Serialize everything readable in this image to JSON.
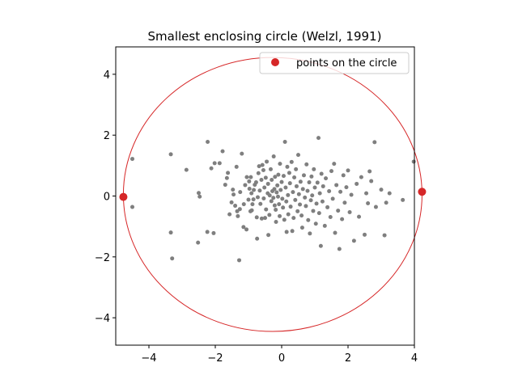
{
  "chart_data": {
    "type": "scatter",
    "title": "Smallest enclosing circle (Welzl, 1991)",
    "xlabel": "",
    "ylabel": "",
    "xlim": [
      -5.0,
      4.0
    ],
    "ylim": [
      -4.9,
      4.9
    ],
    "aspect": "equal",
    "grid": false,
    "legend": {
      "placement": "top-right",
      "entries": [
        "points on the circle"
      ]
    },
    "x_ticks": [
      -4,
      -2,
      0,
      2,
      4
    ],
    "y_ticks": [
      -4,
      -2,
      0,
      2,
      4
    ],
    "circle": {
      "center": [
        -0.27,
        0.05
      ],
      "radius": 4.5,
      "color": "#d62728"
    },
    "series": [
      {
        "name": "",
        "color": "#7f7f7f",
        "points": [
          [
            -4.5,
            1.22
          ],
          [
            -4.5,
            -0.36
          ],
          [
            -3.34,
            1.37
          ],
          [
            -3.34,
            -1.2
          ],
          [
            -3.3,
            -2.05
          ],
          [
            -2.87,
            0.86
          ],
          [
            -2.52,
            -1.53
          ],
          [
            -2.5,
            0.1
          ],
          [
            -2.47,
            -0.02
          ],
          [
            -2.24,
            -1.18
          ],
          [
            -2.23,
            1.78
          ],
          [
            -2.12,
            0.91
          ],
          [
            -2.05,
            -1.22
          ],
          [
            -2.02,
            1.08
          ],
          [
            -1.87,
            1.08
          ],
          [
            -1.78,
            1.47
          ],
          [
            -1.7,
            0.37
          ],
          [
            -1.65,
            0.59
          ],
          [
            -1.62,
            0.76
          ],
          [
            -1.57,
            -0.6
          ],
          [
            -1.51,
            -0.21
          ],
          [
            -1.47,
            0.21
          ],
          [
            -1.45,
            0.05
          ],
          [
            -1.4,
            -0.32
          ],
          [
            -1.36,
            0.96
          ],
          [
            -1.34,
            -0.5
          ],
          [
            -1.32,
            -0.66
          ],
          [
            -1.28,
            -2.11
          ],
          [
            -1.26,
            -0.43
          ],
          [
            -1.25,
            0.13
          ],
          [
            -1.2,
            1.39
          ],
          [
            -1.15,
            -1.02
          ],
          [
            -1.14,
            -0.27
          ],
          [
            -1.1,
            0.36
          ],
          [
            -1.06,
            -1.1
          ],
          [
            -1.05,
            0.62
          ],
          [
            -1.0,
            -0.12
          ],
          [
            -0.98,
            0.48
          ],
          [
            -0.97,
            0.24
          ],
          [
            -0.94,
            -0.5
          ],
          [
            -0.93,
            0.62
          ],
          [
            -0.91,
            0.09
          ],
          [
            -0.9,
            -0.47
          ],
          [
            -0.88,
            -0.27
          ],
          [
            -0.85,
            -0.11
          ],
          [
            -0.84,
            0.2
          ],
          [
            -0.81,
            0.37
          ],
          [
            -0.77,
            0.45
          ],
          [
            -0.75,
            -0.7
          ],
          [
            -0.74,
            -1.4
          ],
          [
            -0.72,
            -0.04
          ],
          [
            -0.7,
            0.75
          ],
          [
            -0.68,
            0.98
          ],
          [
            -0.66,
            0.18
          ],
          [
            -0.64,
            -0.26
          ],
          [
            -0.61,
            0.53
          ],
          [
            -0.6,
            -0.74
          ],
          [
            -0.58,
            1.02
          ],
          [
            -0.55,
            0.85
          ],
          [
            -0.54,
            -0.08
          ],
          [
            -0.52,
            0.28
          ],
          [
            -0.5,
            -0.72
          ],
          [
            -0.48,
            0.6
          ],
          [
            -0.47,
            -0.44
          ],
          [
            -0.45,
            1.13
          ],
          [
            -0.42,
            0.09
          ],
          [
            -0.41,
            0.4
          ],
          [
            -0.4,
            -1.28
          ],
          [
            -0.37,
            -0.62
          ],
          [
            -0.36,
            0.02
          ],
          [
            -0.33,
            0.88
          ],
          [
            -0.31,
            -0.17
          ],
          [
            -0.3,
            0.53
          ],
          [
            -0.28,
            0.16
          ],
          [
            -0.25,
            -0.06
          ],
          [
            -0.24,
            1.3
          ],
          [
            -0.22,
            0.23
          ],
          [
            -0.21,
            -0.31
          ],
          [
            -0.2,
            0.63
          ],
          [
            -0.18,
            -0.45
          ],
          [
            -0.17,
            -0.85
          ],
          [
            -0.15,
            0.12
          ],
          [
            -0.13,
            0.35
          ],
          [
            -0.11,
            -0.02
          ],
          [
            -0.1,
            0.7
          ],
          [
            -0.08,
            -0.27
          ],
          [
            -0.06,
            -0.66
          ],
          [
            -0.05,
            1.06
          ],
          [
            -0.03,
            0.2
          ],
          [
            0.0,
            0.46
          ],
          [
            0.02,
            -0.09
          ],
          [
            0.04,
            -0.38
          ],
          [
            0.06,
            0.66
          ],
          [
            0.08,
            -0.78
          ],
          [
            0.1,
            1.78
          ],
          [
            0.12,
            0.28
          ],
          [
            0.14,
            -0.18
          ],
          [
            0.15,
            -1.18
          ],
          [
            0.17,
            0.96
          ],
          [
            0.19,
            0.03
          ],
          [
            0.2,
            -0.6
          ],
          [
            0.23,
            0.76
          ],
          [
            0.25,
            0.42
          ],
          [
            0.27,
            -0.35
          ],
          [
            0.3,
            1.12
          ],
          [
            0.32,
            -1.15
          ],
          [
            0.34,
            0.13
          ],
          [
            0.36,
            -0.72
          ],
          [
            0.38,
            0.61
          ],
          [
            0.41,
            -0.13
          ],
          [
            0.43,
            0.88
          ],
          [
            0.45,
            0.32
          ],
          [
            0.48,
            -0.5
          ],
          [
            0.5,
            1.35
          ],
          [
            0.52,
            0.06
          ],
          [
            0.55,
            -0.28
          ],
          [
            0.57,
            0.47
          ],
          [
            0.6,
            -0.64
          ],
          [
            0.62,
            -1.04
          ],
          [
            0.64,
            0.23
          ],
          [
            0.67,
            0.68
          ],
          [
            0.7,
            -0.05
          ],
          [
            0.73,
            -0.33
          ],
          [
            0.75,
            1.04
          ],
          [
            0.78,
            0.17
          ],
          [
            0.8,
            -0.79
          ],
          [
            0.83,
            0.45
          ],
          [
            0.85,
            -1.23
          ],
          [
            0.88,
            -0.14
          ],
          [
            0.9,
            0.64
          ],
          [
            0.92,
            0.02
          ],
          [
            0.95,
            -0.49
          ],
          [
            0.97,
            0.88
          ],
          [
            1.0,
            0.28
          ],
          [
            1.03,
            -0.91
          ],
          [
            1.05,
            -0.25
          ],
          [
            1.08,
            0.44
          ],
          [
            1.11,
            1.91
          ],
          [
            1.13,
            -0.56
          ],
          [
            1.15,
            0.09
          ],
          [
            1.18,
            -1.64
          ],
          [
            1.2,
            0.73
          ],
          [
            1.23,
            -0.18
          ],
          [
            1.25,
            0.32
          ],
          [
            1.3,
            -0.98
          ],
          [
            1.33,
            0.58
          ],
          [
            1.38,
            -0.37
          ],
          [
            1.43,
            0.16
          ],
          [
            1.47,
            -0.69
          ],
          [
            1.5,
            0.82
          ],
          [
            1.54,
            -0.09
          ],
          [
            1.58,
            1.06
          ],
          [
            1.61,
            -1.21
          ],
          [
            1.65,
            0.36
          ],
          [
            1.7,
            -0.48
          ],
          [
            1.74,
            -1.74
          ],
          [
            1.77,
            0.14
          ],
          [
            1.82,
            -0.76
          ],
          [
            1.86,
            0.68
          ],
          [
            1.9,
            -0.22
          ],
          [
            1.95,
            0.29
          ],
          [
            2.0,
            0.84
          ],
          [
            2.05,
            -0.53
          ],
          [
            2.1,
            0.04
          ],
          [
            2.18,
            -1.47
          ],
          [
            2.26,
            0.4
          ],
          [
            2.33,
            -0.68
          ],
          [
            2.4,
            0.62
          ],
          [
            2.5,
            -1.27
          ],
          [
            2.55,
            0.09
          ],
          [
            2.6,
            -0.24
          ],
          [
            2.65,
            0.81
          ],
          [
            2.7,
            0.49
          ],
          [
            2.8,
            1.77
          ],
          [
            2.84,
            -0.36
          ],
          [
            3.0,
            0.21
          ],
          [
            3.1,
            -1.29
          ],
          [
            3.15,
            -0.22
          ],
          [
            3.25,
            0.09
          ],
          [
            3.65,
            -0.13
          ],
          [
            3.98,
            1.13
          ]
        ]
      },
      {
        "name": "points on the circle",
        "color": "#d62728",
        "points": [
          [
            -4.77,
            -0.03
          ],
          [
            4.23,
            0.14
          ]
        ]
      }
    ]
  }
}
